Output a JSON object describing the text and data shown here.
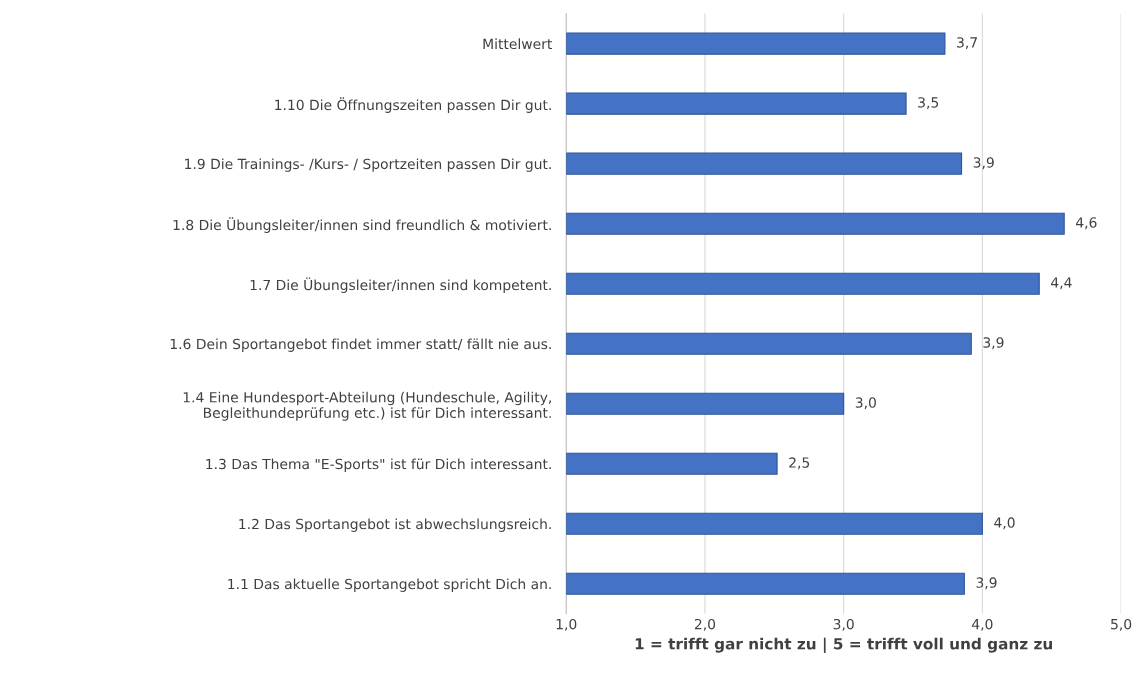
{
  "chart_data": {
    "type": "bar",
    "orientation": "horizontal",
    "xlabel": "1 = trifft gar nicht zu | 5 = trifft voll und ganz zu",
    "categories": [
      "Mittelwert",
      "1.10 Die Öffnungszeiten passen Dir gut.",
      "1.9 Die Trainings- /Kurs- / Sportzeiten passen Dir gut.",
      "1.8 Die Übungsleiter/innen sind freundlich & motiviert.",
      "1.7 Die Übungsleiter/innen sind kompetent.",
      "1.6 Dein Sportangebot findet immer statt/ fällt nie aus.",
      "1.4 Eine Hundesport-Abteilung (Hundeschule, Agility,\nBegleithundeprüfung etc.) ist für Dich interessant.",
      "1.3 Das Thema \"E-Sports\" ist für Dich interessant.",
      "1.2 Das Sportangebot ist abwechslungsreich.",
      "1.1 Das aktuelle Sportangebot spricht Dich an."
    ],
    "values": [
      3.73,
      3.45,
      3.85,
      4.59,
      4.41,
      3.92,
      3.0,
      2.52,
      4.0,
      3.87
    ],
    "value_labels": [
      "3,7",
      "3,5",
      "3,9",
      "4,6",
      "4,4",
      "3,9",
      "3,0",
      "2,5",
      "4,0",
      "3,9"
    ],
    "color": "#4472c4",
    "xlim": [
      1.0,
      5.0
    ],
    "xticks": [
      {
        "value": 1.0,
        "label": "1,0"
      },
      {
        "value": 2.0,
        "label": "2,0"
      },
      {
        "value": 3.0,
        "label": "3,0"
      },
      {
        "value": 4.0,
        "label": "4,0"
      },
      {
        "value": 5.0,
        "label": "5,0"
      }
    ],
    "grid": "x",
    "legend": false
  }
}
